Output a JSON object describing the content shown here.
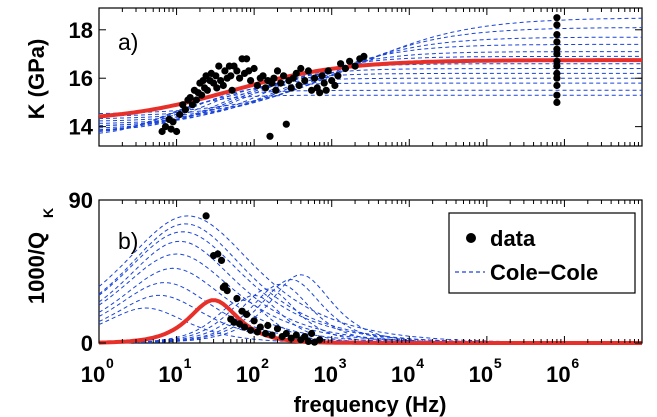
{
  "chart_data": [
    {
      "panel": "a",
      "panel_label": "a)",
      "type": "scatter",
      "ylabel": "K (GPa)",
      "xscale": "log",
      "xlim": [
        1,
        10000000
      ],
      "ylim": [
        13.2,
        18.9
      ],
      "yticks": [
        14,
        16,
        18
      ],
      "colors": {
        "data": "#000000",
        "cole_cole": "#1a44d8",
        "best_fit": "#e8302a"
      },
      "data_points": [
        [
          6.5,
          13.8
        ],
        [
          7.2,
          14.0
        ],
        [
          8,
          14.3
        ],
        [
          8.5,
          13.9
        ],
        [
          9,
          14.2
        ],
        [
          10,
          13.8
        ],
        [
          11,
          14.5
        ],
        [
          12,
          14.9
        ],
        [
          13,
          14.7
        ],
        [
          14,
          15.1
        ],
        [
          15,
          15.2
        ],
        [
          16,
          14.9
        ],
        [
          17,
          15.5
        ],
        [
          18,
          15.1
        ],
        [
          19,
          15.4
        ],
        [
          20,
          15.8
        ],
        [
          21,
          15.3
        ],
        [
          22,
          15.9
        ],
        [
          23,
          15.6
        ],
        [
          24,
          16.1
        ],
        [
          25,
          15.5
        ],
        [
          27,
          15.9
        ],
        [
          28,
          16.2
        ],
        [
          30,
          15.8
        ],
        [
          32,
          16.1
        ],
        [
          33,
          15.6
        ],
        [
          35,
          16.5
        ],
        [
          37,
          15.9
        ],
        [
          40,
          15.7
        ],
        [
          42,
          16.3
        ],
        [
          45,
          16.0
        ],
        [
          48,
          16.5
        ],
        [
          50,
          16.1
        ],
        [
          52,
          15.5
        ],
        [
          55,
          16.5
        ],
        [
          60,
          16.3
        ],
        [
          65,
          16.0
        ],
        [
          70,
          16.8
        ],
        [
          75,
          16.2
        ],
        [
          80,
          16.8
        ],
        [
          85,
          16.3
        ],
        [
          90,
          15.9
        ],
        [
          100,
          16.4
        ],
        [
          110,
          15.7
        ],
        [
          120,
          16.0
        ],
        [
          130,
          16.1
        ],
        [
          140,
          15.6
        ],
        [
          150,
          15.9
        ],
        [
          160,
          13.6
        ],
        [
          170,
          15.8
        ],
        [
          180,
          16.0
        ],
        [
          190,
          15.5
        ],
        [
          200,
          16.3
        ],
        [
          220,
          15.8
        ],
        [
          240,
          16.1
        ],
        [
          260,
          14.1
        ],
        [
          280,
          15.9
        ],
        [
          300,
          15.6
        ],
        [
          320,
          16.0
        ],
        [
          350,
          16.2
        ],
        [
          380,
          15.7
        ],
        [
          400,
          16.4
        ],
        [
          450,
          15.9
        ],
        [
          500,
          16.3
        ],
        [
          550,
          15.5
        ],
        [
          600,
          16.0
        ],
        [
          650,
          15.6
        ],
        [
          700,
          15.4
        ],
        [
          750,
          16.1
        ],
        [
          800,
          15.8
        ],
        [
          850,
          15.5
        ],
        [
          900,
          16.3
        ],
        [
          1000,
          15.9
        ],
        [
          1100,
          15.7
        ],
        [
          1200,
          16.1
        ],
        [
          1300,
          16.6
        ],
        [
          1500,
          16.4
        ],
        [
          1700,
          16.7
        ],
        [
          2000,
          16.5
        ],
        [
          2300,
          16.8
        ],
        [
          2600,
          16.9
        ],
        [
          800000,
          18.5
        ],
        [
          800000,
          18.2
        ],
        [
          800000,
          17.8
        ],
        [
          800000,
          17.5
        ],
        [
          800000,
          17.2
        ],
        [
          800000,
          17.0
        ],
        [
          800000,
          16.7
        ],
        [
          800000,
          16.5
        ],
        [
          800000,
          16.2
        ],
        [
          800000,
          16.0
        ],
        [
          800000,
          15.7
        ],
        [
          800000,
          15.3
        ],
        [
          800000,
          15.0
        ]
      ],
      "cole_cole_curves": [
        {
          "low": 14.5,
          "high": 18.5,
          "fc": 2000,
          "width": 0.6
        },
        {
          "low": 14.4,
          "high": 18.1,
          "fc": 1200,
          "width": 0.65
        },
        {
          "low": 14.3,
          "high": 17.7,
          "fc": 700,
          "width": 0.7
        },
        {
          "low": 14.2,
          "high": 17.4,
          "fc": 400,
          "width": 0.75
        },
        {
          "low": 14.1,
          "high": 17.1,
          "fc": 250,
          "width": 0.8
        },
        {
          "low": 14.0,
          "high": 16.9,
          "fc": 150,
          "width": 0.85
        },
        {
          "low": 14.0,
          "high": 16.6,
          "fc": 90,
          "width": 0.9
        },
        {
          "low": 13.9,
          "high": 16.4,
          "fc": 60,
          "width": 0.95
        },
        {
          "low": 13.8,
          "high": 16.2,
          "fc": 40,
          "width": 1.0
        },
        {
          "low": 13.8,
          "high": 16.0,
          "fc": 25,
          "width": 1.05
        },
        {
          "low": 13.7,
          "high": 15.8,
          "fc": 15,
          "width": 1.1
        },
        {
          "low": 13.7,
          "high": 15.5,
          "fc": 10,
          "width": 1.2
        },
        {
          "low": 13.6,
          "high": 15.3,
          "fc": 7,
          "width": 1.3
        }
      ],
      "best_fit": {
        "low": 14.2,
        "high": 16.75,
        "fc": 50,
        "width": 0.6
      }
    },
    {
      "panel": "b",
      "panel_label": "b)",
      "type": "scatter",
      "ylabel_main": "1000/Q",
      "ylabel_sub": "K",
      "xlabel": "frequency (Hz)",
      "xscale": "log",
      "xlim": [
        1,
        10000000
      ],
      "ylim": [
        0,
        90
      ],
      "yticks": [
        0,
        90
      ],
      "xticks": [
        {
          "base": "10",
          "exp": "0",
          "v": 1
        },
        {
          "base": "10",
          "exp": "1",
          "v": 10
        },
        {
          "base": "10",
          "exp": "2",
          "v": 100
        },
        {
          "base": "10",
          "exp": "3",
          "v": 1000
        },
        {
          "base": "10",
          "exp": "4",
          "v": 10000
        },
        {
          "base": "10",
          "exp": "5",
          "v": 100000
        },
        {
          "base": "10",
          "exp": "6",
          "v": 1000000
        }
      ],
      "legend": {
        "position": "top-right",
        "entries": [
          {
            "label": "data",
            "kind": "marker"
          },
          {
            "label": "Cole−Cole",
            "kind": "dashed"
          }
        ]
      },
      "colors": {
        "data": "#000000",
        "cole_cole": "#1a44d8",
        "best_fit": "#e8302a"
      },
      "data_points": [
        [
          24,
          80
        ],
        [
          30,
          55
        ],
        [
          34,
          56
        ],
        [
          38,
          52
        ],
        [
          40,
          35
        ],
        [
          42,
          36
        ],
        [
          45,
          33
        ],
        [
          50,
          15
        ],
        [
          55,
          13
        ],
        [
          60,
          28
        ],
        [
          65,
          12
        ],
        [
          70,
          20
        ],
        [
          75,
          10
        ],
        [
          80,
          18
        ],
        [
          90,
          8
        ],
        [
          100,
          14
        ],
        [
          110,
          7
        ],
        [
          120,
          10
        ],
        [
          140,
          6
        ],
        [
          150,
          11
        ],
        [
          170,
          5
        ],
        [
          200,
          9
        ],
        [
          230,
          4
        ],
        [
          260,
          6
        ],
        [
          300,
          3
        ],
        [
          350,
          5
        ],
        [
          400,
          2
        ],
        [
          450,
          4
        ],
        [
          500,
          1
        ],
        [
          550,
          6
        ],
        [
          600,
          0.5
        ],
        [
          700,
          2
        ]
      ],
      "cole_cole_curves": [
        {
          "peak": 80,
          "fc": 14,
          "width": 0.55
        },
        {
          "peak": 75,
          "fc": 13,
          "width": 0.6
        },
        {
          "peak": 70,
          "fc": 12,
          "width": 0.6
        },
        {
          "peak": 64,
          "fc": 11,
          "width": 0.65
        },
        {
          "peak": 56,
          "fc": 10,
          "width": 0.65
        },
        {
          "peak": 47,
          "fc": 9,
          "width": 0.7
        },
        {
          "peak": 38,
          "fc": 7,
          "width": 0.75
        },
        {
          "peak": 30,
          "fc": 6,
          "width": 0.8
        },
        {
          "peak": 22,
          "fc": 4,
          "width": 0.9
        },
        {
          "peak": 43,
          "fc": 400,
          "width": 1.2
        },
        {
          "peak": 40,
          "fc": 300,
          "width": 1.2
        },
        {
          "peak": 37,
          "fc": 220,
          "width": 1.25
        },
        {
          "peak": 34,
          "fc": 150,
          "width": 1.3
        },
        {
          "peak": 30,
          "fc": 100,
          "width": 1.35
        },
        {
          "peak": 27,
          "fc": 70,
          "width": 1.4
        }
      ],
      "best_fit": {
        "peak": 27,
        "fc": 30,
        "width": 1.55
      }
    }
  ]
}
